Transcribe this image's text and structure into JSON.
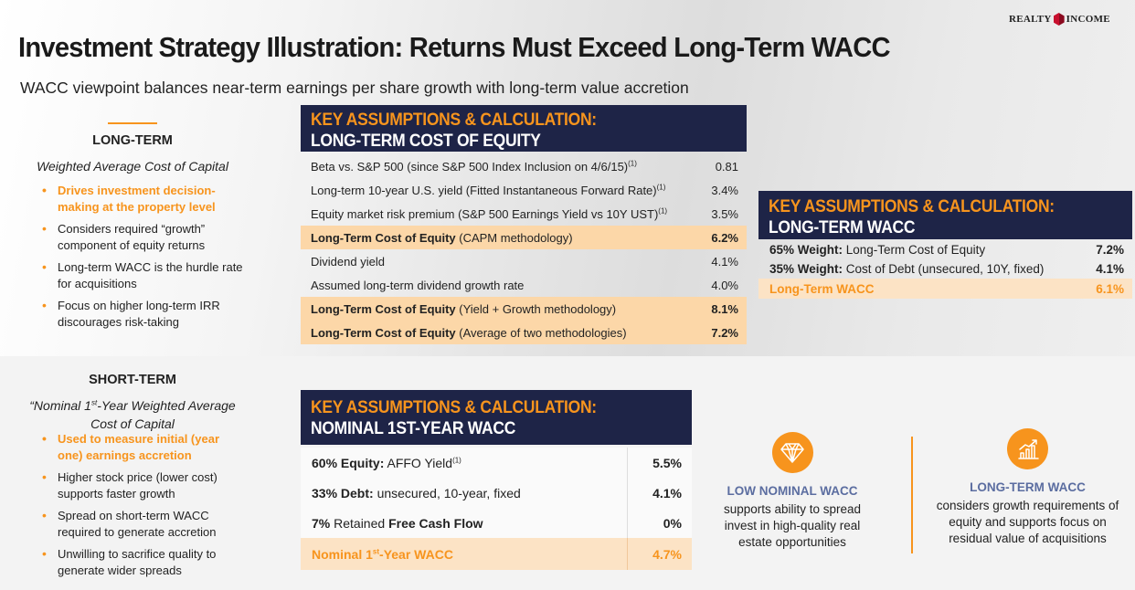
{
  "header": {
    "logo_left": "REALTY",
    "logo_right": "INCOME",
    "title": "Investment Strategy Illustration: Returns Must Exceed Long-Term WACC",
    "subtitle": "WACC viewpoint balances near-term earnings per share growth with long-term value accretion"
  },
  "long_term": {
    "heading": "LONG-TERM",
    "subheading": "Weighted Average Cost of Capital",
    "bullets": [
      "Drives investment decision-making at the property level",
      "Considers required “growth” component of equity returns",
      "Long-term WACC is the hurdle rate for acquisitions",
      "Focus on higher long-term IRR discourages risk-taking"
    ]
  },
  "short_term": {
    "heading": "SHORT-TERM",
    "subheading_pre": "“Nominal 1",
    "subheading_sup": "st",
    "subheading_post": "-Year Weighted Average Cost of Capital",
    "bullets": [
      "Used to measure initial (year one) earnings accretion",
      "Higher stock price (lower cost) supports faster growth",
      "Spread on short-term WACC required to generate accretion",
      "Unwilling to sacrifice quality to generate wider spreads"
    ]
  },
  "coe_panel": {
    "line1": "KEY ASSUMPTIONS & CALCULATION:",
    "line2": "LONG-TERM COST OF EQUITY",
    "rows": [
      {
        "label": "Beta vs. S&P 500 (since S&P 500 Index Inclusion on 4/6/15)",
        "note": "(1)",
        "value": "0.81"
      },
      {
        "label": "Long-term 10-year U.S. yield (Fitted Instantaneous Forward Rate)",
        "note": "(1)",
        "value": "3.4%"
      },
      {
        "label": "Equity market risk premium (S&P 500 Earnings Yield vs 10Y UST)",
        "note": "(1)",
        "value": "3.5%"
      },
      {
        "bold": "Long-Term Cost of Equity",
        "label": " (CAPM methodology)",
        "value": "6.2%"
      },
      {
        "label": "Dividend yield",
        "value": "4.1%"
      },
      {
        "label": "Assumed long-term dividend growth rate",
        "value": "4.0%"
      },
      {
        "bold": "Long-Term Cost of Equity",
        "label": " (Yield + Growth methodology)",
        "value": "8.1%"
      },
      {
        "bold": "Long-Term Cost of Equity",
        "label": " (Average of two methodologies)",
        "value": "7.2%"
      }
    ]
  },
  "wacc_panel": {
    "line1": "KEY ASSUMPTIONS & CALCULATION:",
    "line2": "LONG-TERM WACC",
    "rows": [
      {
        "bold": "65% Weight:",
        "label": " Long-Term Cost of Equity",
        "value": "7.2%"
      },
      {
        "bold": "35% Weight:",
        "label": " Cost of Debt (unsecured, 10Y, fixed)",
        "value": "4.1%"
      },
      {
        "bold": "Long-Term WACC",
        "label": "",
        "value": "6.1%"
      }
    ]
  },
  "nominal_panel": {
    "line1": "KEY ASSUMPTIONS & CALCULATION:",
    "line2": "NOMINAL 1ST-YEAR WACC",
    "rows": [
      {
        "bold": "60% Equity:",
        "label": " AFFO Yield",
        "note": "(1)",
        "value": "5.5%"
      },
      {
        "bold": "33% Debt:",
        "label": " unsecured, 10-year, fixed",
        "value": "4.1%"
      },
      {
        "bold": "7%",
        "label": " Retained ",
        "bold2": "Free Cash Flow",
        "value": "0%"
      },
      {
        "bold": "Nominal 1",
        "sup": "st",
        "bold_post": "-Year WACC",
        "value": "4.7%"
      }
    ]
  },
  "callouts": [
    {
      "icon": "diamond-icon",
      "title": "LOW NOMINAL WACC",
      "desc": "supports ability to spread invest in high-quality real estate opportunities"
    },
    {
      "icon": "growth-chart-icon",
      "title": "LONG-TERM WACC",
      "desc": "considers growth requirements of equity and supports focus on residual value of acquisitions"
    }
  ],
  "colors": {
    "navy": "#1e2447",
    "orange": "#f7941d",
    "peach": "#fcd7a8",
    "accent_blue": "#5b6da0"
  }
}
